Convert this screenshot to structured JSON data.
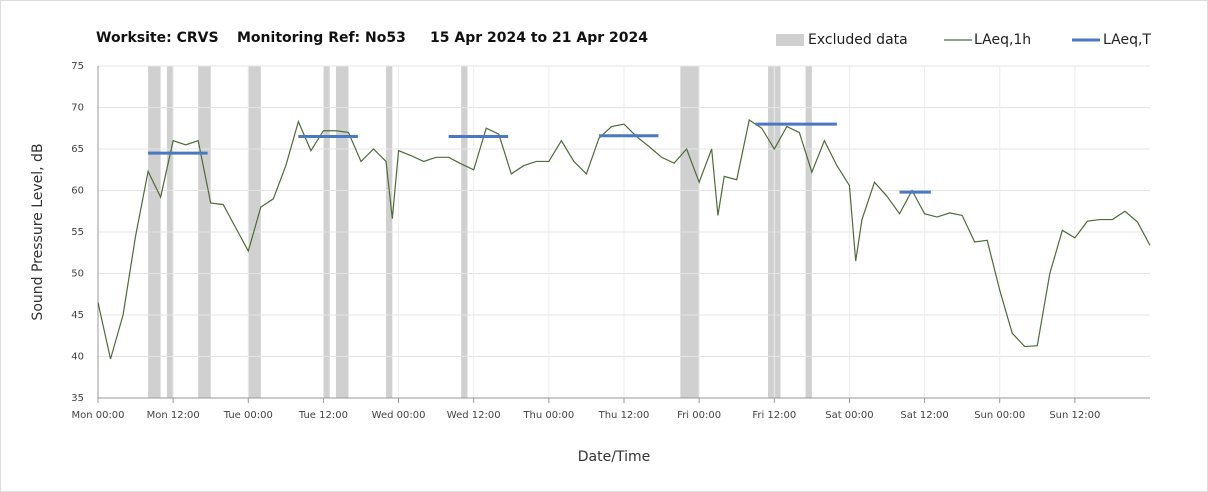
{
  "chart_data": {
    "type": "line",
    "title": [
      "Worksite: CRVS",
      "Monitoring Ref: No53",
      "15 Apr 2024 to 21 Apr 2024"
    ],
    "x_label": "Date/Time",
    "y_label": "Sound Pressure Level, dB",
    "xlim": [
      0,
      168
    ],
    "ylim": [
      35,
      75
    ],
    "yticks": [
      35,
      40,
      45,
      50,
      55,
      60,
      65,
      70,
      75
    ],
    "xticks": [
      {
        "value": 0,
        "label": "Mon 00:00"
      },
      {
        "value": 12,
        "label": "Mon 12:00"
      },
      {
        "value": 24,
        "label": "Tue 00:00"
      },
      {
        "value": 36,
        "label": "Tue 12:00"
      },
      {
        "value": 48,
        "label": "Wed 00:00"
      },
      {
        "value": 60,
        "label": "Wed 12:00"
      },
      {
        "value": 72,
        "label": "Thu 00:00"
      },
      {
        "value": 84,
        "label": "Thu 12:00"
      },
      {
        "value": 96,
        "label": "Fri 00:00"
      },
      {
        "value": 108,
        "label": "Fri 12:00"
      },
      {
        "value": 120,
        "label": "Sat 00:00"
      },
      {
        "value": 132,
        "label": "Sat 12:00"
      },
      {
        "value": 144,
        "label": "Sun 00:00"
      },
      {
        "value": 156,
        "label": "Sun 12:00"
      }
    ],
    "grid": true,
    "legend": "top-right",
    "excluded": {
      "name": "Excluded data",
      "color": "#d0d0d0",
      "ranges": [
        [
          8,
          10
        ],
        [
          11,
          12
        ],
        [
          16,
          18
        ],
        [
          24,
          26
        ],
        [
          36,
          37
        ],
        [
          38,
          40
        ],
        [
          46,
          47
        ],
        [
          58,
          59
        ],
        [
          93,
          96
        ],
        [
          107,
          109
        ],
        [
          113,
          114
        ]
      ]
    },
    "series": [
      {
        "name": "LAeq,1h",
        "color": "#4f6b3a",
        "x": [
          0,
          2,
          4,
          6,
          8,
          10,
          12,
          14,
          16,
          18,
          20,
          22,
          24,
          26,
          28,
          30,
          32,
          34,
          36,
          38,
          40,
          42,
          44,
          46,
          47,
          48,
          50,
          52,
          54,
          56,
          58,
          60,
          62,
          64,
          66,
          68,
          70,
          72,
          74,
          76,
          78,
          80,
          82,
          84,
          86,
          88,
          90,
          92,
          94,
          96,
          98,
          99,
          100,
          102,
          104,
          106,
          108,
          110,
          112,
          114,
          116,
          118,
          120,
          121,
          122,
          124,
          126,
          128,
          130,
          132,
          134,
          136,
          138,
          140,
          142,
          144,
          146,
          148,
          150,
          152,
          154,
          156,
          158,
          160,
          162,
          164,
          166,
          168
        ],
        "values": [
          46.5,
          39.7,
          45,
          54.5,
          62.3,
          59.2,
          66,
          65.5,
          66,
          58.5,
          58.3,
          55.5,
          52.7,
          58,
          59,
          63,
          68.3,
          64.8,
          67.2,
          67.2,
          67,
          63.5,
          65,
          63.5,
          56.6,
          64.8,
          64.2,
          63.5,
          64,
          64,
          63.2,
          62.5,
          67.5,
          66.8,
          62,
          63,
          63.5,
          63.5,
          66,
          63.5,
          62,
          66.3,
          67.7,
          68,
          66.5,
          65.3,
          64,
          63.3,
          65,
          61,
          65,
          57,
          61.7,
          61.3,
          68.5,
          67.5,
          65,
          67.7,
          67,
          62.2,
          66,
          63,
          60.6,
          51.5,
          56.5,
          61,
          59.3,
          57.2,
          60,
          57.2,
          56.8,
          57.3,
          57,
          53.8,
          54,
          48,
          42.8,
          41.2,
          41.3,
          50,
          55.2,
          54.3,
          56.3,
          56.5,
          56.5,
          57.5,
          56.2,
          53.4
        ]
      },
      {
        "name": "LAeq,T",
        "color": "#4a78c2",
        "segments": [
          {
            "x": [
              8,
              17.5
            ],
            "value": 64.5
          },
          {
            "x": [
              32,
              41.5
            ],
            "value": 66.5
          },
          {
            "x": [
              56,
              65.5
            ],
            "value": 66.5
          },
          {
            "x": [
              80,
              89.5
            ],
            "value": 66.6
          },
          {
            "x": [
              105,
              118
            ],
            "value": 68
          },
          {
            "x": [
              128,
              133
            ],
            "value": 59.8
          }
        ]
      }
    ]
  }
}
